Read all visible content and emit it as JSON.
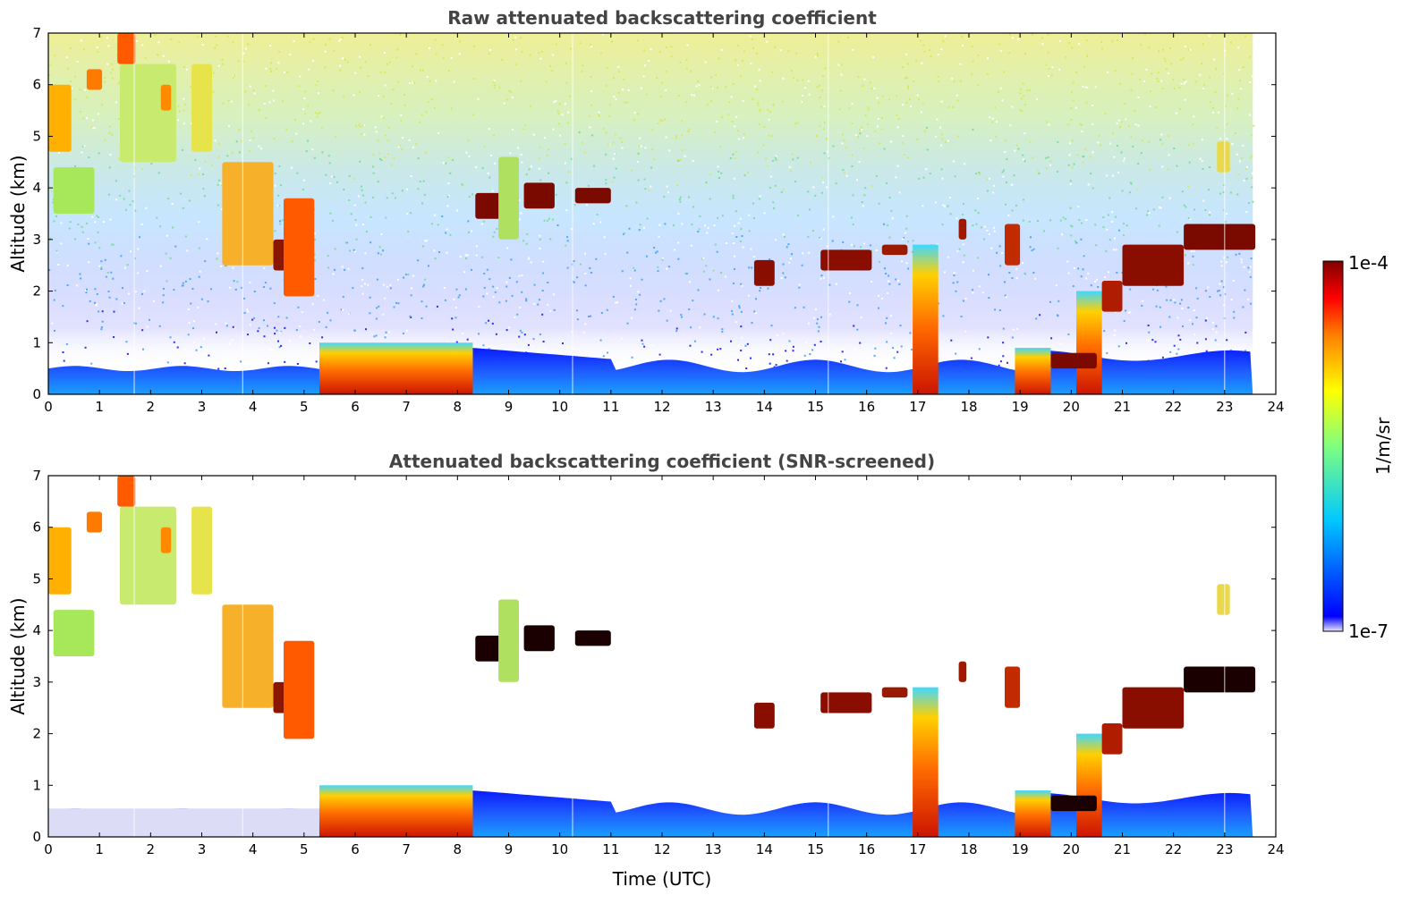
{
  "chart_data": [
    {
      "type": "heatmap",
      "title": "Raw attenuated backscattering coefficient",
      "xlabel": "",
      "ylabel": "Altitude (km)",
      "xlim": [
        0,
        24
      ],
      "ylim": [
        0,
        7
      ],
      "xticks": [
        "0",
        "1",
        "2",
        "3",
        "4",
        "5",
        "6",
        "7",
        "8",
        "9",
        "10",
        "11",
        "12",
        "13",
        "14",
        "15",
        "16",
        "17",
        "18",
        "19",
        "20",
        "21",
        "22",
        "23",
        "24"
      ],
      "yticks": [
        "0",
        "1",
        "2",
        "3",
        "4",
        "5",
        "6",
        "7"
      ],
      "screened": false
    },
    {
      "type": "heatmap",
      "title": "Attenuated backscattering coefficient (SNR-screened)",
      "xlabel": "Time (UTC)",
      "ylabel": "Altitude (km)",
      "xlim": [
        0,
        24
      ],
      "ylim": [
        0,
        7
      ],
      "xticks": [
        "0",
        "1",
        "2",
        "3",
        "4",
        "5",
        "6",
        "7",
        "8",
        "9",
        "10",
        "11",
        "12",
        "13",
        "14",
        "15",
        "16",
        "17",
        "18",
        "19",
        "20",
        "21",
        "22",
        "23",
        "24"
      ],
      "yticks": [
        "0",
        "1",
        "2",
        "3",
        "4",
        "5",
        "6",
        "7"
      ],
      "screened": true
    }
  ],
  "colorbar": {
    "label": "1/m/sr",
    "max_label": "1e-4",
    "min_label": "1e-7",
    "colors": [
      "#e6e6fa",
      "#0000ff",
      "#00c8ff",
      "#7fff7f",
      "#ffff00",
      "#ff7f00",
      "#ff0000",
      "#7f0000"
    ]
  }
}
